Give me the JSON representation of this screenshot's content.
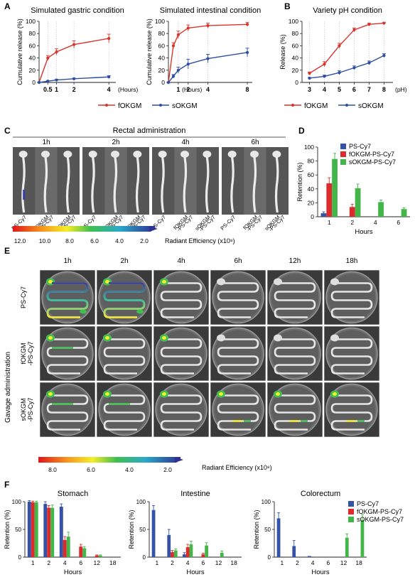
{
  "panel_letters": {
    "A": "A",
    "B": "B",
    "C": "C",
    "D": "D",
    "E": "E",
    "F": "F"
  },
  "colors": {
    "f": "#d9342b",
    "s": "#2f4ea1",
    "ps": "#3552a6",
    "fk": "#dd2a2a",
    "sk": "#43b649",
    "grid": "#bfbfbf"
  },
  "chart_data": [
    {
      "id": "A1",
      "type": "line",
      "title": "Simulated gastric condition",
      "ylabel": "Cumulative release (%)",
      "xlabel": "(Hours)",
      "ylim": [
        0,
        100
      ],
      "yticks": [
        0,
        20,
        40,
        60,
        80,
        100
      ],
      "xlim": [
        0,
        4.4
      ],
      "xticks": [
        0.5,
        1,
        2,
        4
      ],
      "xticklabels": [
        "0.5",
        "1",
        "2",
        "4"
      ],
      "series": [
        {
          "name": "fOKGM",
          "x": [
            0,
            0.5,
            1,
            2,
            4
          ],
          "y": [
            0,
            40,
            50,
            62,
            72
          ],
          "err": [
            0,
            4,
            5,
            6,
            7
          ]
        },
        {
          "name": "sOKGM",
          "x": [
            0,
            0.5,
            1,
            2,
            4
          ],
          "y": [
            0,
            2,
            4,
            6,
            9
          ],
          "err": [
            0,
            1,
            1,
            1,
            2
          ]
        }
      ]
    },
    {
      "id": "A2",
      "type": "line",
      "title": "Simulated intestinal condition",
      "ylabel": "Cumulative release (%)",
      "xlabel": "(Hours)",
      "ylim": [
        0,
        100
      ],
      "yticks": [
        0,
        20,
        40,
        60,
        80,
        100
      ],
      "xlim": [
        0,
        8.5
      ],
      "xticks": [
        1,
        2,
        4,
        8
      ],
      "xticklabels": [
        "1",
        "2",
        "4",
        "8"
      ],
      "series": [
        {
          "name": "fOKGM",
          "x": [
            0,
            0.5,
            1,
            2,
            4,
            8
          ],
          "y": [
            0,
            60,
            78,
            89,
            93,
            95
          ],
          "err": [
            0,
            5,
            6,
            5,
            4,
            3
          ]
        },
        {
          "name": "sOKGM",
          "x": [
            0,
            0.5,
            1,
            2,
            4,
            8
          ],
          "y": [
            0,
            10,
            20,
            30,
            39,
            49
          ],
          "err": [
            0,
            3,
            5,
            8,
            7,
            7
          ]
        }
      ]
    },
    {
      "id": "B",
      "type": "line",
      "title": "Variety pH condition",
      "ylabel": "Release (%)",
      "xlabel": "(pH)",
      "ylim": [
        0,
        100
      ],
      "yticks": [
        0,
        20,
        40,
        60,
        80,
        100
      ],
      "xlim": [
        2.5,
        8.6
      ],
      "xticks": [
        3,
        4,
        5,
        6,
        7,
        8
      ],
      "xticklabels": [
        "3",
        "4",
        "5",
        "6",
        "7",
        "8"
      ],
      "series": [
        {
          "name": "fOKGM",
          "x": [
            3,
            4,
            5,
            6,
            7,
            8
          ],
          "y": [
            15,
            30,
            60,
            86,
            95,
            97
          ],
          "err": [
            2,
            4,
            4,
            3,
            2,
            1
          ]
        },
        {
          "name": "sOKGM",
          "x": [
            3,
            4,
            5,
            6,
            7,
            8
          ],
          "y": [
            7,
            10,
            16,
            24,
            32,
            44
          ],
          "err": [
            1,
            2,
            3,
            3,
            3,
            3
          ]
        }
      ]
    },
    {
      "id": "D",
      "type": "bar",
      "ylabel": "Retention (%)",
      "xlabel": "Hours",
      "ylim": [
        0,
        100
      ],
      "yticks": [
        0,
        20,
        40,
        60,
        80,
        100
      ],
      "categories": [
        "1",
        "2",
        "4",
        "6"
      ],
      "series": [
        {
          "name": "PS-Cy7",
          "values": [
            5,
            0,
            0,
            0
          ],
          "err": [
            2,
            0,
            0,
            0
          ]
        },
        {
          "name": "fOKGM-PS-Cy7",
          "values": [
            48,
            14,
            0,
            0
          ],
          "err": [
            8,
            4,
            0,
            0
          ]
        },
        {
          "name": "sOKGM-PS-Cy7",
          "values": [
            83,
            41,
            21,
            11
          ],
          "err": [
            8,
            6,
            3,
            2
          ]
        }
      ]
    },
    {
      "id": "F1",
      "type": "bar",
      "title": "Stomach",
      "ylabel": "Retention (%)",
      "xlabel": "Hours",
      "ylim": [
        0,
        100
      ],
      "yticks": [
        0,
        50,
        100
      ],
      "categories": [
        "1",
        "2",
        "4",
        "6",
        "12",
        "18"
      ],
      "series": [
        {
          "name": "PS-Cy7",
          "values": [
            100,
            96,
            91,
            0,
            0,
            0
          ],
          "err": [
            2,
            4,
            5,
            0,
            0,
            0
          ]
        },
        {
          "name": "fOKGM-PS-Cy7",
          "values": [
            99,
            89,
            31,
            19,
            3,
            0
          ],
          "err": [
            2,
            4,
            6,
            4,
            1,
            0
          ]
        },
        {
          "name": "sOKGM-PS-Cy7",
          "values": [
            99,
            89,
            37,
            16,
            3,
            0
          ],
          "err": [
            2,
            5,
            8,
            3,
            1,
            0
          ]
        }
      ]
    },
    {
      "id": "F2",
      "type": "bar",
      "title": "Intestine",
      "ylabel": "Retention (%)",
      "xlabel": "Hours",
      "ylim": [
        0,
        100
      ],
      "yticks": [
        0,
        50,
        100
      ],
      "categories": [
        "1",
        "2",
        "4",
        "6",
        "12",
        "18"
      ],
      "series": [
        {
          "name": "PS-Cy7",
          "values": [
            85,
            40,
            5,
            0,
            0,
            0
          ],
          "err": [
            8,
            10,
            3,
            0,
            0,
            0
          ]
        },
        {
          "name": "fOKGM-PS-Cy7",
          "values": [
            0,
            9,
            18,
            5,
            0,
            0
          ],
          "err": [
            0,
            3,
            5,
            2,
            0,
            0
          ]
        },
        {
          "name": "sOKGM-PS-Cy7",
          "values": [
            0,
            12,
            23,
            21,
            8,
            0
          ],
          "err": [
            0,
            3,
            6,
            5,
            3,
            0
          ]
        }
      ]
    },
    {
      "id": "F3",
      "type": "bar",
      "title": "Colorectum",
      "ylabel": "Retention (%)",
      "xlabel": "Hours",
      "ylim": [
        0,
        100
      ],
      "yticks": [
        0,
        50,
        100
      ],
      "categories": [
        "1",
        "2",
        "4",
        "6",
        "12",
        "18"
      ],
      "series": [
        {
          "name": "PS-Cy7",
          "values": [
            70,
            20,
            2,
            0,
            0,
            0
          ],
          "err": [
            10,
            10,
            0,
            0,
            0,
            0
          ]
        },
        {
          "name": "fOKGM-PS-Cy7",
          "values": [
            0,
            0,
            0,
            0,
            0,
            0
          ],
          "err": [
            0,
            0,
            0,
            0,
            0,
            0
          ]
        },
        {
          "name": "sOKGM-PS-Cy7",
          "values": [
            0,
            0,
            0,
            0,
            35,
            67
          ],
          "err": [
            0,
            0,
            0,
            0,
            7,
            10
          ]
        }
      ]
    }
  ],
  "legend_ab": {
    "f": "fOKGM",
    "s": "sOKGM"
  },
  "legend_bars": [
    "PS-Cy7",
    "fOKGM-PS-Cy7",
    "sOKGM-PS-Cy7"
  ],
  "panel_c": {
    "title": "Rectal administration",
    "times": [
      "1h",
      "2h",
      "4h",
      "6h"
    ],
    "labels": [
      [
        "PS-Cy7"
      ],
      [
        "fOKGM",
        "-PS-Cy7"
      ],
      [
        "sOKGM",
        "-PS-Cy7"
      ]
    ],
    "colorbar_ticks": [
      "12.0",
      "10.0",
      "8.0",
      "6.0",
      "4.0",
      "2.0"
    ],
    "colorbar_label": "Radiant Efficiency (x10⁸)"
  },
  "panel_e": {
    "side_label": "Gavage administration",
    "times": [
      "1h",
      "2h",
      "4h",
      "6h",
      "12h",
      "18h"
    ],
    "rows": [
      [
        "PS-Cy7"
      ],
      [
        "fOKGM",
        "-PS-Cy7"
      ],
      [
        "sOKGM",
        "-PS-Cy7"
      ]
    ],
    "colorbar_ticks": [
      "8.0",
      "6.0",
      "4.0",
      "2.0"
    ],
    "colorbar_label": "Radiant Efficiency (x10⁸)"
  }
}
